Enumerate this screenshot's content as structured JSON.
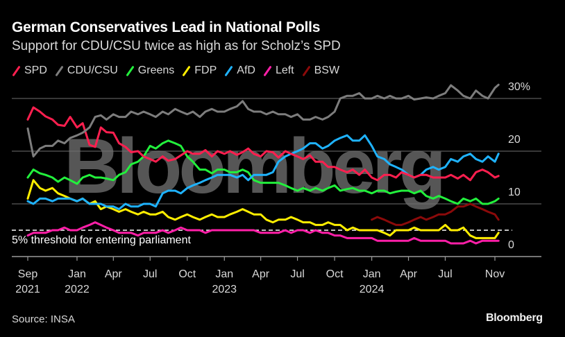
{
  "header": {
    "title": "German Conservatives Lead in National Polls",
    "subtitle": "Support for CDU/CSU twice as high as for Scholz’s SPD"
  },
  "footer": {
    "source": "Source: INSA",
    "brand": "Bloomberg"
  },
  "watermark": "Bloomberg",
  "chart_data": {
    "type": "line",
    "title": "German Conservatives Lead in National Polls",
    "subtitle": "Support for CDU/CSU twice as high as for Scholz’s SPD",
    "xlabel": "",
    "ylabel": "",
    "ylim": [
      0,
      30
    ],
    "y_ticks": [
      {
        "value": 30,
        "label": "30%"
      },
      {
        "value": 20,
        "label": "20"
      },
      {
        "value": 10,
        "label": "10"
      },
      {
        "value": 0,
        "label": "0"
      }
    ],
    "xlim": [
      "2021-08-15",
      "2024-12-31"
    ],
    "x_ticks": [
      {
        "date": "2021-09-01",
        "label": "Sep",
        "year": "2021"
      },
      {
        "date": "2022-01-01",
        "label": "Jan",
        "year": "2022"
      },
      {
        "date": "2022-04-01",
        "label": "Apr",
        "year": ""
      },
      {
        "date": "2022-07-01",
        "label": "Jul",
        "year": ""
      },
      {
        "date": "2022-10-01",
        "label": "Oct",
        "year": ""
      },
      {
        "date": "2023-01-01",
        "label": "Jan",
        "year": "2023"
      },
      {
        "date": "2023-04-01",
        "label": "Apr",
        "year": ""
      },
      {
        "date": "2023-07-01",
        "label": "Jul",
        "year": ""
      },
      {
        "date": "2023-10-01",
        "label": "Oct",
        "year": ""
      },
      {
        "date": "2024-01-01",
        "label": "Jan",
        "year": "2024"
      },
      {
        "date": "2024-04-01",
        "label": "Apr",
        "year": ""
      },
      {
        "date": "2024-07-01",
        "label": "Jul",
        "year": ""
      },
      {
        "date": "2024-11-01",
        "label": "Nov",
        "year": ""
      }
    ],
    "grid": true,
    "legend_position": "top-left",
    "annotations": [
      {
        "type": "hline",
        "value": 5,
        "style": "dashed",
        "text": "5% threshold for entering parliament"
      }
    ],
    "x": [
      "2021-09-01",
      "2021-09-15",
      "2021-10-01",
      "2021-10-15",
      "2021-11-01",
      "2021-11-15",
      "2021-12-01",
      "2021-12-15",
      "2022-01-01",
      "2022-01-15",
      "2022-02-01",
      "2022-02-15",
      "2022-03-01",
      "2022-03-15",
      "2022-04-01",
      "2022-04-15",
      "2022-05-01",
      "2022-05-15",
      "2022-06-01",
      "2022-06-15",
      "2022-07-01",
      "2022-07-15",
      "2022-08-01",
      "2022-08-15",
      "2022-09-01",
      "2022-09-15",
      "2022-10-01",
      "2022-10-15",
      "2022-11-01",
      "2022-11-15",
      "2022-12-01",
      "2022-12-15",
      "2023-01-01",
      "2023-01-15",
      "2023-02-01",
      "2023-02-15",
      "2023-03-01",
      "2023-03-15",
      "2023-04-01",
      "2023-04-15",
      "2023-05-01",
      "2023-05-15",
      "2023-06-01",
      "2023-06-15",
      "2023-07-01",
      "2023-07-15",
      "2023-08-01",
      "2023-08-15",
      "2023-09-01",
      "2023-09-15",
      "2023-10-01",
      "2023-10-15",
      "2023-11-01",
      "2023-11-15",
      "2023-12-01",
      "2023-12-15",
      "2024-01-01",
      "2024-01-15",
      "2024-02-01",
      "2024-02-15",
      "2024-03-01",
      "2024-03-15",
      "2024-04-01",
      "2024-04-15",
      "2024-05-01",
      "2024-05-15",
      "2024-06-01",
      "2024-06-15",
      "2024-07-01",
      "2024-07-15",
      "2024-08-01",
      "2024-08-15",
      "2024-09-01",
      "2024-09-15",
      "2024-10-01",
      "2024-10-15",
      "2024-11-01",
      "2024-11-10"
    ],
    "series": [
      {
        "name": "SPD",
        "color": "#ff1f4f",
        "values": [
          26.0,
          28.3,
          27.5,
          26.6,
          26.0,
          25.0,
          24.8,
          26.5,
          24.5,
          25.3,
          21.2,
          20.8,
          24.5,
          23.6,
          23.5,
          21.5,
          20.8,
          19.8,
          20.0,
          19.0,
          18.5,
          18.0,
          19.0,
          18.2,
          18.5,
          19.2,
          20.0,
          19.5,
          19.5,
          20.2,
          19.0,
          20.0,
          19.5,
          20.0,
          19.3,
          19.8,
          20.5,
          19.5,
          19.0,
          20.0,
          19.8,
          18.8,
          20.0,
          19.5,
          19.0,
          18.5,
          19.2,
          18.0,
          18.0,
          17.0,
          17.0,
          16.5,
          16.0,
          16.5,
          15.5,
          16.5,
          15.0,
          14.5,
          15.5,
          15.5,
          15.0,
          16.0,
          15.5,
          15.0,
          15.5,
          15.5,
          15.0,
          15.0,
          15.0,
          15.5,
          14.8,
          15.5,
          14.5,
          16.0,
          16.5,
          16.0,
          15.0,
          15.3
        ]
      },
      {
        "name": "CDU/CSU",
        "color": "#7d7d7d",
        "values": [
          24.3,
          19.0,
          20.5,
          21.0,
          21.0,
          22.0,
          21.5,
          22.5,
          23.0,
          23.5,
          24.5,
          26.5,
          26.8,
          26.0,
          27.0,
          26.5,
          26.5,
          27.5,
          27.0,
          27.5,
          27.0,
          26.5,
          27.5,
          27.0,
          28.0,
          27.5,
          27.0,
          27.5,
          26.5,
          27.5,
          28.0,
          27.5,
          27.5,
          28.0,
          28.5,
          29.5,
          28.0,
          27.5,
          27.5,
          27.0,
          27.5,
          27.0,
          27.0,
          26.5,
          27.0,
          26.0,
          26.0,
          26.5,
          26.0,
          26.5,
          27.5,
          30.0,
          30.5,
          30.5,
          31.0,
          30.0,
          30.0,
          30.5,
          30.0,
          30.5,
          30.0,
          30.0,
          30.5,
          29.8,
          30.0,
          30.2,
          30.0,
          30.5,
          31.0,
          32.5,
          31.5,
          30.5,
          30.0,
          31.5,
          30.5,
          30.0,
          32.0,
          32.6
        ]
      },
      {
        "name": "Greens",
        "color": "#22f03c",
        "values": [
          15.0,
          16.5,
          15.8,
          15.5,
          15.0,
          14.2,
          15.0,
          14.5,
          13.8,
          15.0,
          15.5,
          15.0,
          15.0,
          14.8,
          14.5,
          15.5,
          16.0,
          17.5,
          18.0,
          19.0,
          21.0,
          20.5,
          21.5,
          22.0,
          21.5,
          21.0,
          19.0,
          18.0,
          16.5,
          16.5,
          15.8,
          16.5,
          16.5,
          16.0,
          16.0,
          16.5,
          16.0,
          14.5,
          14.0,
          14.0,
          14.0,
          14.0,
          13.5,
          13.0,
          12.5,
          13.0,
          12.5,
          13.0,
          12.5,
          13.0,
          13.5,
          12.5,
          12.8,
          13.0,
          12.5,
          12.5,
          12.0,
          12.5,
          12.5,
          12.0,
          12.3,
          12.5,
          12.5,
          12.0,
          12.5,
          11.5,
          11.0,
          11.5,
          11.0,
          10.5,
          10.0,
          11.0,
          10.5,
          11.0,
          10.0,
          10.0,
          10.5,
          11.0
        ]
      },
      {
        "name": "FDP",
        "color": "#ffee00",
        "values": [
          11.0,
          14.5,
          13.0,
          12.5,
          13.0,
          12.0,
          11.5,
          11.0,
          10.5,
          11.0,
          10.0,
          10.5,
          9.0,
          9.5,
          9.0,
          8.5,
          9.0,
          8.5,
          8.0,
          8.5,
          8.0,
          8.0,
          8.5,
          7.5,
          7.0,
          7.5,
          8.0,
          7.5,
          7.0,
          7.5,
          8.0,
          7.5,
          7.5,
          8.0,
          8.5,
          9.0,
          8.5,
          8.0,
          8.0,
          7.0,
          6.5,
          7.0,
          7.0,
          7.5,
          7.0,
          6.5,
          6.5,
          6.0,
          6.0,
          6.5,
          6.0,
          6.0,
          5.0,
          5.5,
          5.0,
          5.0,
          5.0,
          5.0,
          4.5,
          4.0,
          5.0,
          5.0,
          5.0,
          5.5,
          5.0,
          5.0,
          5.0,
          5.0,
          6.0,
          5.0,
          5.0,
          5.5,
          4.0,
          3.5,
          3.5,
          3.5,
          3.5,
          4.5
        ]
      },
      {
        "name": "AfD",
        "color": "#1fb3ff",
        "values": [
          10.5,
          10.0,
          11.0,
          11.0,
          10.5,
          11.0,
          11.0,
          11.0,
          10.5,
          11.0,
          10.0,
          10.0,
          10.0,
          9.5,
          9.5,
          9.0,
          10.0,
          9.5,
          9.5,
          10.0,
          10.0,
          9.5,
          12.0,
          12.5,
          12.5,
          12.0,
          13.0,
          13.5,
          14.0,
          14.5,
          15.0,
          15.5,
          15.5,
          15.5,
          15.0,
          15.5,
          14.5,
          15.5,
          15.5,
          15.5,
          16.0,
          18.0,
          19.0,
          19.5,
          20.0,
          20.5,
          21.5,
          21.5,
          20.5,
          21.0,
          22.0,
          22.5,
          23.0,
          22.0,
          22.0,
          23.0,
          21.0,
          19.0,
          18.5,
          17.5,
          17.0,
          16.5,
          15.5,
          15.0,
          15.5,
          16.5,
          17.0,
          16.5,
          17.0,
          18.5,
          18.0,
          19.0,
          19.5,
          18.5,
          18.0,
          19.0,
          18.0,
          19.5
        ]
      },
      {
        "name": "Left",
        "color": "#ff1fa8",
        "values": [
          4.0,
          4.5,
          4.5,
          4.5,
          5.0,
          5.0,
          5.5,
          5.0,
          5.0,
          5.5,
          6.0,
          6.5,
          6.0,
          5.5,
          5.0,
          4.5,
          4.5,
          4.5,
          4.0,
          4.5,
          4.5,
          4.5,
          5.0,
          4.5,
          5.0,
          5.5,
          5.0,
          5.0,
          5.0,
          4.5,
          5.0,
          5.0,
          5.0,
          5.0,
          5.0,
          5.0,
          5.0,
          5.0,
          4.5,
          4.5,
          4.5,
          4.5,
          5.0,
          4.5,
          5.0,
          5.0,
          4.5,
          5.0,
          4.5,
          4.5,
          4.0,
          4.0,
          3.5,
          3.5,
          3.5,
          3.5,
          3.5,
          3.0,
          3.0,
          3.0,
          3.0,
          3.0,
          3.0,
          3.5,
          3.0,
          3.0,
          3.0,
          3.0,
          3.0,
          2.5,
          2.5,
          2.5,
          3.0,
          2.5,
          3.0,
          3.0,
          3.0,
          3.0
        ]
      },
      {
        "name": "BSW",
        "color": "#8b0a0a",
        "values": [
          null,
          null,
          null,
          null,
          null,
          null,
          null,
          null,
          null,
          null,
          null,
          null,
          null,
          null,
          null,
          null,
          null,
          null,
          null,
          null,
          null,
          null,
          null,
          null,
          null,
          null,
          null,
          null,
          null,
          null,
          null,
          null,
          null,
          null,
          null,
          null,
          null,
          null,
          null,
          null,
          null,
          null,
          null,
          null,
          null,
          null,
          null,
          null,
          null,
          null,
          null,
          null,
          null,
          null,
          null,
          null,
          7.0,
          7.5,
          7.0,
          6.5,
          6.0,
          6.0,
          6.5,
          7.0,
          7.5,
          7.0,
          7.5,
          8.0,
          8.0,
          8.5,
          9.5,
          9.5,
          10.0,
          9.5,
          9.0,
          8.5,
          8.0,
          7.0
        ]
      }
    ]
  }
}
